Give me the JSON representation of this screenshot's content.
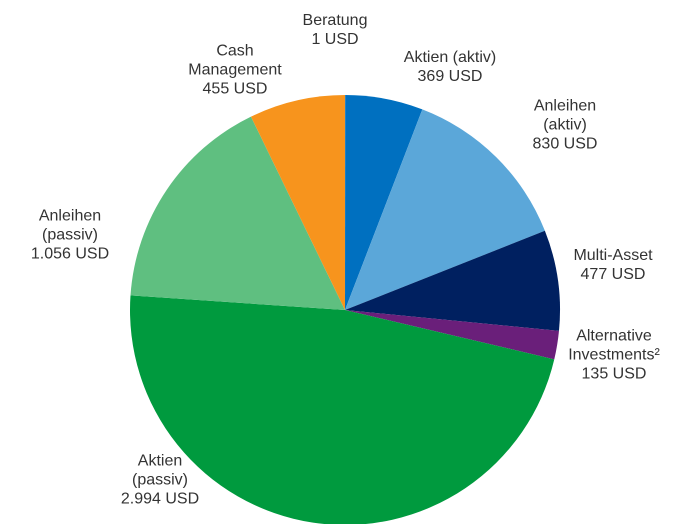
{
  "chart_data": {
    "type": "pie",
    "categories": [
      "Beratung",
      "Aktien (aktiv)",
      "Anleihen (aktiv)",
      "Multi-Asset",
      "Alternative Investments²",
      "Aktien (passiv)",
      "Anleihen (passiv)",
      "Cash Management"
    ],
    "values": [
      1,
      369,
      830,
      477,
      135,
      2994,
      1056,
      455
    ],
    "value_labels": [
      "1 USD",
      "369 USD",
      "830 USD",
      "477 USD",
      "135 USD",
      "2.994 USD",
      "1.056 USD",
      "455 USD"
    ],
    "colors": [
      "#7f7f7f",
      "#0070c0",
      "#5ba7d9",
      "#002060",
      "#6a1f7a",
      "#009a3e",
      "#5fbf80",
      "#f7941d"
    ]
  }
}
